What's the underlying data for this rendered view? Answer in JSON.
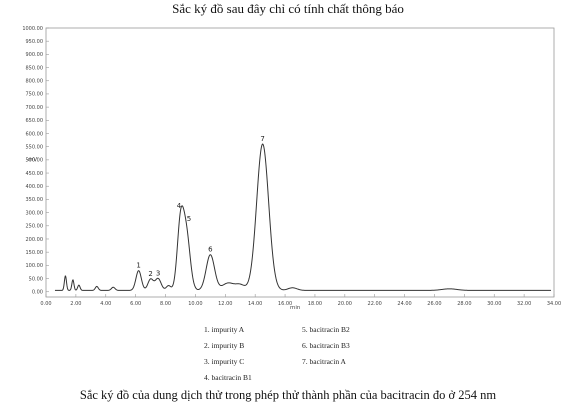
{
  "title": "Sắc ký đồ sau đây chỉ có tính chất thông báo",
  "caption": "Sắc ký đồ của dung dịch thử trong phép thử thành phần của bacitracin đo ở 254 nm",
  "chart_data": {
    "type": "line",
    "ylabel": "mV",
    "xlabel": "min",
    "xlim": [
      0,
      34
    ],
    "ylim": [
      -20,
      1000
    ],
    "yticks": [
      "1000.00",
      "950.00",
      "900.00",
      "850.00",
      "800.00",
      "750.00",
      "700.00",
      "650.00",
      "600.00",
      "550.00",
      "500.00",
      "450.00",
      "400.00",
      "350.00",
      "300.00",
      "250.00",
      "200.00",
      "150.00",
      "100.00",
      "50.00",
      "0.00"
    ],
    "xticks": [
      "0.00",
      "2.00",
      "4.00",
      "6.00",
      "8.00",
      "10.00",
      "12.00",
      "14.00",
      "16.00",
      "18.00",
      "20.00",
      "22.00",
      "24.00",
      "26.00",
      "28.00",
      "30.00",
      "32.00",
      "34.00"
    ],
    "baseline": 5,
    "peaks": [
      {
        "label": "1",
        "rt": 6.2,
        "height": 75,
        "width": 0.18
      },
      {
        "label": "2",
        "rt": 7.0,
        "height": 42,
        "width": 0.18
      },
      {
        "label": "3",
        "rt": 7.5,
        "height": 45,
        "width": 0.2
      },
      {
        "label": "4",
        "rt": 9.0,
        "height": 245,
        "width": 0.22
      },
      {
        "label": "5",
        "rt": 9.4,
        "height": 205,
        "width": 0.25
      },
      {
        "label": "6",
        "rt": 11.0,
        "height": 135,
        "width": 0.28
      },
      {
        "label": "7",
        "rt": 14.5,
        "height": 555,
        "width": 0.4
      }
    ],
    "minor_peaks": [
      {
        "rt": 1.3,
        "height": 55,
        "width": 0.07
      },
      {
        "rt": 1.8,
        "height": 40,
        "width": 0.07
      },
      {
        "rt": 2.2,
        "height": 20,
        "width": 0.08
      },
      {
        "rt": 3.4,
        "height": 15,
        "width": 0.1
      },
      {
        "rt": 4.5,
        "height": 12,
        "width": 0.12
      },
      {
        "rt": 8.2,
        "height": 18,
        "width": 0.15
      },
      {
        "rt": 12.2,
        "height": 28,
        "width": 0.4
      },
      {
        "rt": 13.0,
        "height": 20,
        "width": 0.3
      },
      {
        "rt": 16.5,
        "height": 10,
        "width": 0.3
      },
      {
        "rt": 27.0,
        "height": 6,
        "width": 0.5
      }
    ]
  },
  "legend": {
    "col_a": [
      "1. impurity A",
      "2. impurity B",
      "3. impurity C",
      "4. bacitracin B1"
    ],
    "col_b": [
      "5. bacitracin B2",
      "6. bacitracin B3",
      "7. bacitracin A"
    ]
  }
}
